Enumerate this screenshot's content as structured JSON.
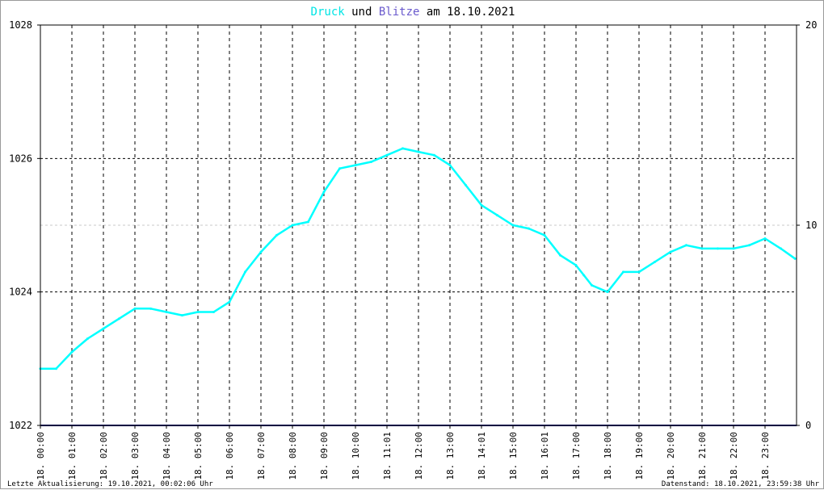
{
  "title": {
    "part1": "Druck",
    "part2": " und ",
    "part3": "Blitze",
    "part4": " am 18.10.2021",
    "color_druck": "#00e5e5",
    "color_blitze": "#6a5acd",
    "color_text": "#000000"
  },
  "footer": {
    "left": "Letzte Aktualisierung: 19.10.2021, 00:02:06 Uhr",
    "right": "Datenstand: 18.10.2021, 23:59:38 Uhr"
  },
  "chart_data": {
    "type": "line",
    "xlim": [
      0,
      24
    ],
    "left_axis": {
      "ylim": [
        1022,
        1028
      ],
      "ticks": [
        "1022",
        "1024",
        "1026",
        "1028"
      ]
    },
    "right_axis": {
      "ylim": [
        0,
        20
      ],
      "ticks": [
        "0",
        "10",
        "20"
      ]
    },
    "x_ticks": [
      "18. 00:00",
      "18. 01:00",
      "18. 02:00",
      "18. 03:00",
      "18. 04:00",
      "18. 05:00",
      "18. 06:00",
      "18. 07:00",
      "18. 08:00",
      "18. 09:00",
      "18. 10:00",
      "18. 11:01",
      "18. 12:00",
      "18. 13:00",
      "18. 14:01",
      "18. 15:00",
      "18. 16:01",
      "18. 17:00",
      "18. 18:00",
      "18. 19:00",
      "18. 20:00",
      "18. 21:00",
      "18. 22:00",
      "18. 23:00"
    ],
    "grid": true,
    "series": [
      {
        "name": "Druck",
        "axis": "left",
        "color": "#00ffff",
        "x": [
          0,
          0.5,
          1,
          1.5,
          2,
          2.5,
          3,
          3.5,
          4,
          4.5,
          5,
          5.5,
          6,
          6.5,
          7,
          7.5,
          8,
          8.5,
          9,
          9.5,
          10,
          10.5,
          11,
          11.5,
          12,
          12.5,
          13,
          13.5,
          14,
          14.5,
          15,
          15.5,
          16,
          16.5,
          17,
          17.25,
          17.5,
          18,
          18.5,
          19,
          19.5,
          20,
          20.5,
          21,
          21.5,
          22,
          22.5,
          23,
          23.5,
          23.95
        ],
        "y": [
          1022.85,
          1022.85,
          1023.1,
          1023.3,
          1023.45,
          1023.6,
          1023.75,
          1023.75,
          1023.7,
          1023.65,
          1023.7,
          1023.7,
          1023.85,
          1024.3,
          1024.6,
          1024.85,
          1025.0,
          1025.05,
          1025.5,
          1025.85,
          1025.9,
          1025.95,
          1026.05,
          1026.15,
          1026.1,
          1026.05,
          1025.9,
          1025.6,
          1025.3,
          1025.15,
          1025.0,
          1024.95,
          1024.85,
          1024.55,
          1024.4,
          1024.25,
          1024.1,
          1024.0,
          1024.3,
          1024.3,
          1024.45,
          1024.6,
          1024.7,
          1024.65,
          1024.65,
          1024.65,
          1024.7,
          1024.8,
          1024.65,
          1024.5
        ]
      },
      {
        "name": "Blitze",
        "axis": "right",
        "color": "#00007f",
        "x": [
          0,
          24
        ],
        "y": [
          0,
          0
        ]
      }
    ]
  }
}
